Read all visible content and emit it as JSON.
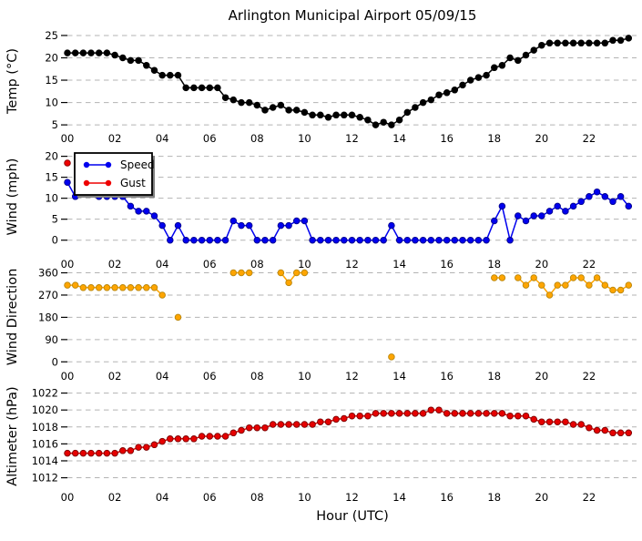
{
  "title": "Arlington Municipal Airport 05/09/15",
  "xaxis": {
    "label": "Hour (UTC)",
    "range_hours": [
      0,
      24
    ],
    "tick_hours": [
      0,
      2,
      4,
      6,
      8,
      10,
      12,
      14,
      16,
      18,
      20,
      22
    ],
    "tick_labels": [
      "00",
      "02",
      "04",
      "06",
      "08",
      "10",
      "12",
      "14",
      "16",
      "18",
      "20",
      "22"
    ],
    "sample_interval_minutes": 20,
    "start_hour": 0
  },
  "legend": {
    "entries": [
      "Speed",
      "Gust"
    ]
  },
  "colors": {
    "temperature": "#000000",
    "speed": "#0000ee",
    "gust": "#ee0000",
    "direction": "#ffa500",
    "direction_edge": "#b8860b",
    "altimeter": "#e60000",
    "altimeter_edge": "#7a0000",
    "gridline": "#b3b3b3"
  },
  "chart_data": [
    {
      "type": "line",
      "name": "temperature",
      "ylabel": "Temp (°C)",
      "yticks": [
        5,
        10,
        15,
        20,
        25
      ],
      "ylim": [
        3.8,
        25.6
      ],
      "grid": true,
      "series": [
        {
          "name": "Temp",
          "color": "#000000",
          "marker_fill": "#000000",
          "marker_edge": "#000000",
          "values": [
            21.1,
            21.1,
            21.1,
            21.1,
            21.1,
            21.1,
            20.6,
            20.0,
            19.4,
            19.4,
            18.3,
            17.2,
            16.1,
            16.1,
            16.1,
            13.3,
            13.3,
            13.3,
            13.3,
            13.3,
            11.1,
            10.6,
            10.0,
            10.0,
            9.4,
            8.3,
            8.9,
            9.4,
            8.3,
            8.3,
            7.8,
            7.2,
            7.2,
            6.7,
            7.2,
            7.2,
            7.2,
            6.7,
            6.1,
            5.0,
            5.6,
            5.0,
            6.1,
            7.8,
            8.9,
            10.0,
            10.6,
            11.7,
            12.2,
            12.8,
            13.9,
            15.0,
            15.6,
            16.1,
            17.8,
            18.3,
            20.0,
            19.4,
            20.6,
            21.7,
            22.8,
            23.3,
            23.3,
            23.3,
            23.3,
            23.3,
            23.3,
            23.3,
            23.3,
            23.9,
            23.9,
            24.4
          ]
        }
      ]
    },
    {
      "type": "line",
      "name": "wind",
      "ylabel": "Wind (mph)",
      "yticks": [
        0,
        5,
        10,
        15,
        20
      ],
      "ylim": [
        -0.5,
        21.0
      ],
      "grid": true,
      "legend_position": "upper-left",
      "series": [
        {
          "name": "Speed",
          "color": "#0000ee",
          "marker_fill": "#0000ee",
          "marker_edge": "#00008b",
          "values": [
            13.8,
            10.4,
            11.5,
            11.5,
            10.4,
            10.4,
            10.4,
            10.4,
            8.1,
            6.9,
            6.9,
            5.8,
            3.5,
            0,
            3.5,
            0,
            0,
            0,
            0,
            0,
            0,
            4.6,
            3.5,
            3.5,
            0,
            0,
            0,
            3.5,
            3.5,
            4.6,
            4.6,
            0,
            0,
            0,
            0,
            0,
            0,
            0,
            0,
            0,
            0,
            3.5,
            0,
            0,
            0,
            0,
            0,
            0,
            0,
            0,
            0,
            0,
            0,
            0,
            4.6,
            8.1,
            0,
            5.8,
            4.6,
            5.8,
            5.8,
            6.9,
            8.1,
            6.9,
            8.1,
            9.2,
            10.4,
            11.5,
            10.4,
            9.2,
            10.4,
            8.1
          ]
        },
        {
          "name": "Gust",
          "color": "#ee0000",
          "marker_fill": "#ee0000",
          "marker_edge": "#8b0000",
          "values": [
            18.4,
            null,
            null,
            null,
            null,
            null,
            null,
            null,
            null,
            null,
            null,
            null,
            null,
            null,
            null,
            null,
            null,
            null,
            null,
            null,
            null,
            null,
            null,
            null,
            null,
            null,
            null,
            null,
            null,
            null,
            null,
            null,
            null,
            null,
            null,
            null,
            null,
            null,
            null,
            null,
            null,
            null,
            null,
            null,
            null,
            null,
            null,
            null,
            null,
            null,
            null,
            null,
            null,
            null,
            null,
            null,
            null,
            null,
            null,
            null,
            null,
            null,
            null,
            null,
            null,
            null,
            null,
            null,
            null,
            null,
            null,
            null
          ]
        }
      ]
    },
    {
      "type": "line",
      "name": "wind_direction",
      "ylabel": "Wind Direction",
      "yticks": [
        0,
        90,
        180,
        270,
        360
      ],
      "ylim": [
        -10,
        373
      ],
      "grid": true,
      "series": [
        {
          "name": "Direction",
          "color": "#ffa500",
          "marker_fill": "#ffa500",
          "marker_edge": "#b8860b",
          "values": [
            310,
            310,
            300,
            300,
            300,
            300,
            300,
            300,
            300,
            300,
            300,
            300,
            270,
            null,
            180,
            null,
            null,
            null,
            null,
            null,
            null,
            360,
            360,
            360,
            null,
            null,
            null,
            360,
            320,
            360,
            360,
            null,
            null,
            null,
            null,
            null,
            null,
            null,
            null,
            null,
            null,
            20,
            null,
            null,
            null,
            null,
            null,
            null,
            null,
            null,
            null,
            null,
            null,
            null,
            340,
            340,
            null,
            340,
            310,
            340,
            310,
            270,
            310,
            310,
            340,
            340,
            310,
            340,
            310,
            290,
            290,
            310
          ]
        }
      ]
    },
    {
      "type": "line",
      "name": "altimeter",
      "ylabel": "Altimeter (hPa)",
      "yticks": [
        1012,
        1014,
        1016,
        1018,
        1020,
        1022
      ],
      "ylim": [
        1011.2,
        1022.6
      ],
      "grid": true,
      "series": [
        {
          "name": "Altimeter",
          "color": "#e60000",
          "marker_fill": "#e60000",
          "marker_edge": "#7a0000",
          "values": [
            1014.9,
            1014.9,
            1014.9,
            1014.9,
            1014.9,
            1014.9,
            1014.9,
            1015.2,
            1015.2,
            1015.6,
            1015.6,
            1015.9,
            1016.3,
            1016.6,
            1016.6,
            1016.6,
            1016.6,
            1016.9,
            1016.9,
            1016.9,
            1016.9,
            1017.3,
            1017.6,
            1017.9,
            1017.9,
            1017.9,
            1018.3,
            1018.3,
            1018.3,
            1018.3,
            1018.3,
            1018.3,
            1018.6,
            1018.6,
            1018.9,
            1019.0,
            1019.3,
            1019.3,
            1019.3,
            1019.6,
            1019.6,
            1019.6,
            1019.6,
            1019.6,
            1019.6,
            1019.6,
            1020.0,
            1020.0,
            1019.6,
            1019.6,
            1019.6,
            1019.6,
            1019.6,
            1019.6,
            1019.6,
            1019.6,
            1019.3,
            1019.3,
            1019.3,
            1018.9,
            1018.6,
            1018.6,
            1018.6,
            1018.6,
            1018.3,
            1018.3,
            1017.9,
            1017.6,
            1017.6,
            1017.3,
            1017.3,
            1017.3
          ]
        }
      ]
    }
  ]
}
